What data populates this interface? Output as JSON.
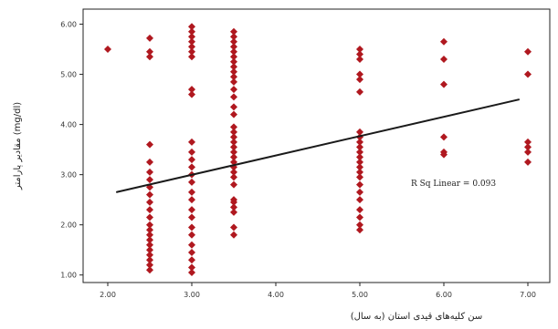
{
  "chart_data": {
    "type": "scatter",
    "xlabel": "سن کلیه‌های قیدی استان (به سال)",
    "ylabel": "مقادیر پارامتر (mg/dl)",
    "xlim": [
      2.0,
      7.0
    ],
    "ylim": [
      0.85,
      6.3
    ],
    "x_ticks": [
      "2.00",
      "3.00",
      "4.00",
      "5.00",
      "6.00",
      "7.00"
    ],
    "y_ticks": [
      "1.00",
      "2.00",
      "3.00",
      "4.00",
      "5.00",
      "6.00"
    ],
    "annotation": "R Sq Linear = 0.093",
    "grid": false,
    "point_color": "#b0181f",
    "line_color": "#1a1a1a",
    "trend_line": {
      "x": [
        2.1,
        6.9
      ],
      "y": [
        2.65,
        4.5
      ]
    },
    "points": [
      {
        "x": 2.0,
        "y": 5.5
      },
      {
        "x": 2.5,
        "y": 5.72
      },
      {
        "x": 2.5,
        "y": 5.45
      },
      {
        "x": 2.5,
        "y": 5.35
      },
      {
        "x": 2.5,
        "y": 3.6
      },
      {
        "x": 2.5,
        "y": 3.25
      },
      {
        "x": 2.5,
        "y": 3.05
      },
      {
        "x": 2.5,
        "y": 2.9
      },
      {
        "x": 2.5,
        "y": 2.75
      },
      {
        "x": 2.5,
        "y": 2.6
      },
      {
        "x": 2.5,
        "y": 2.45
      },
      {
        "x": 2.5,
        "y": 2.3
      },
      {
        "x": 2.5,
        "y": 2.15
      },
      {
        "x": 2.5,
        "y": 2.0
      },
      {
        "x": 2.5,
        "y": 1.9
      },
      {
        "x": 2.5,
        "y": 1.8
      },
      {
        "x": 2.5,
        "y": 1.7
      },
      {
        "x": 2.5,
        "y": 1.6
      },
      {
        "x": 2.5,
        "y": 1.5
      },
      {
        "x": 2.5,
        "y": 1.4
      },
      {
        "x": 2.5,
        "y": 1.3
      },
      {
        "x": 2.5,
        "y": 1.2
      },
      {
        "x": 2.5,
        "y": 1.1
      },
      {
        "x": 3.0,
        "y": 5.95
      },
      {
        "x": 3.0,
        "y": 5.85
      },
      {
        "x": 3.0,
        "y": 5.75
      },
      {
        "x": 3.0,
        "y": 5.65
      },
      {
        "x": 3.0,
        "y": 5.55
      },
      {
        "x": 3.0,
        "y": 5.45
      },
      {
        "x": 3.0,
        "y": 5.35
      },
      {
        "x": 3.0,
        "y": 4.7
      },
      {
        "x": 3.0,
        "y": 4.6
      },
      {
        "x": 3.0,
        "y": 3.65
      },
      {
        "x": 3.0,
        "y": 3.45
      },
      {
        "x": 3.0,
        "y": 3.3
      },
      {
        "x": 3.0,
        "y": 3.15
      },
      {
        "x": 3.0,
        "y": 3.0
      },
      {
        "x": 3.0,
        "y": 2.85
      },
      {
        "x": 3.0,
        "y": 2.65
      },
      {
        "x": 3.0,
        "y": 2.5
      },
      {
        "x": 3.0,
        "y": 2.3
      },
      {
        "x": 3.0,
        "y": 2.15
      },
      {
        "x": 3.0,
        "y": 1.95
      },
      {
        "x": 3.0,
        "y": 1.8
      },
      {
        "x": 3.0,
        "y": 1.6
      },
      {
        "x": 3.0,
        "y": 1.45
      },
      {
        "x": 3.0,
        "y": 1.3
      },
      {
        "x": 3.0,
        "y": 1.15
      },
      {
        "x": 3.0,
        "y": 1.05
      },
      {
        "x": 3.5,
        "y": 5.85
      },
      {
        "x": 3.5,
        "y": 5.75
      },
      {
        "x": 3.5,
        "y": 5.65
      },
      {
        "x": 3.5,
        "y": 5.55
      },
      {
        "x": 3.5,
        "y": 5.45
      },
      {
        "x": 3.5,
        "y": 5.35
      },
      {
        "x": 3.5,
        "y": 5.25
      },
      {
        "x": 3.5,
        "y": 5.15
      },
      {
        "x": 3.5,
        "y": 5.05
      },
      {
        "x": 3.5,
        "y": 4.95
      },
      {
        "x": 3.5,
        "y": 4.85
      },
      {
        "x": 3.5,
        "y": 4.7
      },
      {
        "x": 3.5,
        "y": 4.55
      },
      {
        "x": 3.5,
        "y": 4.35
      },
      {
        "x": 3.5,
        "y": 4.2
      },
      {
        "x": 3.5,
        "y": 3.95
      },
      {
        "x": 3.5,
        "y": 3.85
      },
      {
        "x": 3.5,
        "y": 3.75
      },
      {
        "x": 3.5,
        "y": 3.65
      },
      {
        "x": 3.5,
        "y": 3.55
      },
      {
        "x": 3.5,
        "y": 3.45
      },
      {
        "x": 3.5,
        "y": 3.35
      },
      {
        "x": 3.5,
        "y": 3.25
      },
      {
        "x": 3.5,
        "y": 3.15
      },
      {
        "x": 3.5,
        "y": 3.05
      },
      {
        "x": 3.5,
        "y": 2.95
      },
      {
        "x": 3.5,
        "y": 2.8
      },
      {
        "x": 3.5,
        "y": 2.5
      },
      {
        "x": 3.5,
        "y": 2.45
      },
      {
        "x": 3.5,
        "y": 2.35
      },
      {
        "x": 3.5,
        "y": 2.25
      },
      {
        "x": 3.5,
        "y": 1.95
      },
      {
        "x": 3.5,
        "y": 1.8
      },
      {
        "x": 5.0,
        "y": 5.5
      },
      {
        "x": 5.0,
        "y": 5.4
      },
      {
        "x": 5.0,
        "y": 5.3
      },
      {
        "x": 5.0,
        "y": 5.0
      },
      {
        "x": 5.0,
        "y": 4.9
      },
      {
        "x": 5.0,
        "y": 4.65
      },
      {
        "x": 5.0,
        "y": 3.85
      },
      {
        "x": 5.0,
        "y": 3.75
      },
      {
        "x": 5.0,
        "y": 3.65
      },
      {
        "x": 5.0,
        "y": 3.55
      },
      {
        "x": 5.0,
        "y": 3.45
      },
      {
        "x": 5.0,
        "y": 3.35
      },
      {
        "x": 5.0,
        "y": 3.25
      },
      {
        "x": 5.0,
        "y": 3.15
      },
      {
        "x": 5.0,
        "y": 3.05
      },
      {
        "x": 5.0,
        "y": 2.95
      },
      {
        "x": 5.0,
        "y": 2.8
      },
      {
        "x": 5.0,
        "y": 2.65
      },
      {
        "x": 5.0,
        "y": 2.5
      },
      {
        "x": 5.0,
        "y": 2.3
      },
      {
        "x": 5.0,
        "y": 2.15
      },
      {
        "x": 5.0,
        "y": 2.0
      },
      {
        "x": 5.0,
        "y": 1.9
      },
      {
        "x": 6.0,
        "y": 5.65
      },
      {
        "x": 6.0,
        "y": 5.3
      },
      {
        "x": 6.0,
        "y": 4.8
      },
      {
        "x": 6.0,
        "y": 3.75
      },
      {
        "x": 6.0,
        "y": 3.45
      },
      {
        "x": 6.0,
        "y": 3.4
      },
      {
        "x": 7.0,
        "y": 5.45
      },
      {
        "x": 7.0,
        "y": 5.0
      },
      {
        "x": 7.0,
        "y": 3.65
      },
      {
        "x": 7.0,
        "y": 3.55
      },
      {
        "x": 7.0,
        "y": 3.45
      },
      {
        "x": 7.0,
        "y": 3.25
      }
    ]
  }
}
